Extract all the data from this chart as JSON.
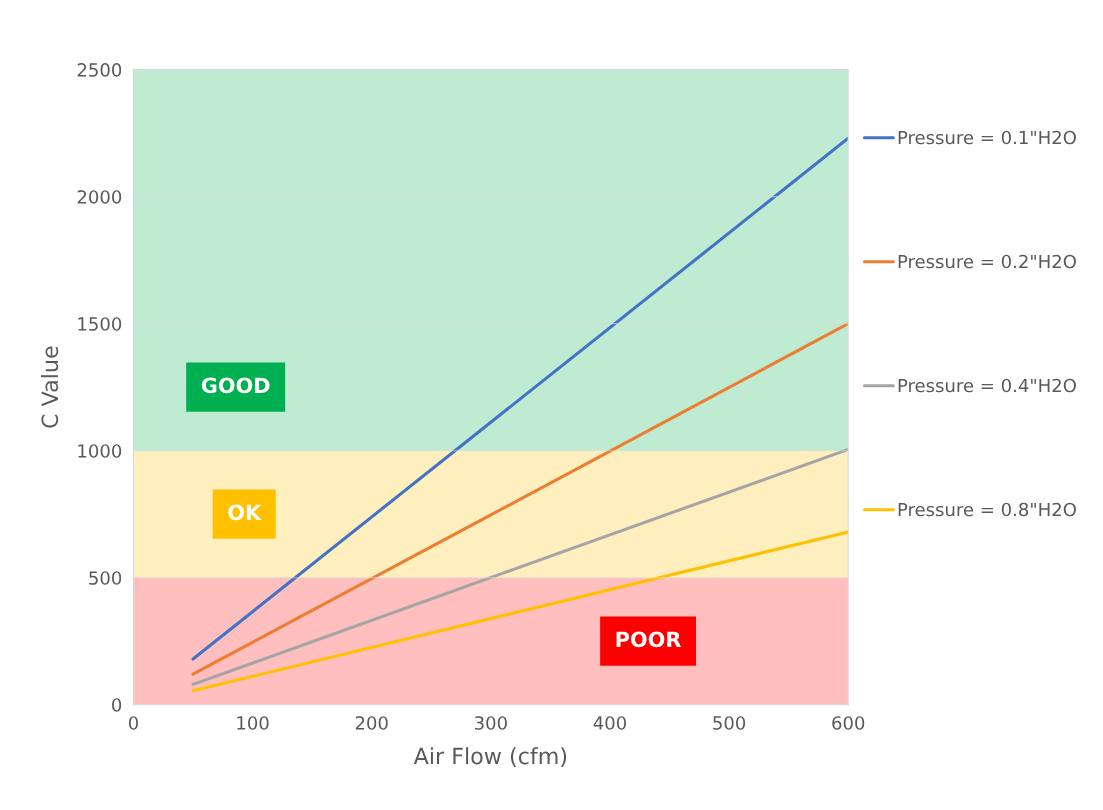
{
  "chart_data": {
    "type": "line",
    "xlabel": "Air Flow (cfm)",
    "ylabel": "C Value",
    "x": [
      50,
      600
    ],
    "series": [
      {
        "name": "Pressure = 0.1\"H2O",
        "color": "#4472c4",
        "values": [
          180,
          2230
        ]
      },
      {
        "name": "Pressure = 0.2\"H2O",
        "color": "#ed7d31",
        "values": [
          120,
          1500
        ]
      },
      {
        "name": "Pressure = 0.4\"H2O",
        "color": "#a5a5a5",
        "values": [
          80,
          1005
        ]
      },
      {
        "name": "Pressure = 0.8\"H2O",
        "color": "#ffc000",
        "values": [
          55,
          680
        ]
      }
    ],
    "xlim": [
      0,
      600
    ],
    "xticks": [
      0,
      100,
      200,
      300,
      400,
      500,
      600
    ],
    "ylim": [
      0,
      2500
    ],
    "yticks": [
      0,
      500,
      1000,
      1500,
      2000,
      2500
    ],
    "bands": [
      {
        "axis": "y",
        "from": 0,
        "to": 500,
        "label": "POOR",
        "color": "#ff0000"
      },
      {
        "axis": "y",
        "from": 500,
        "to": 1000,
        "label": "OK",
        "color": "#ffc000"
      },
      {
        "axis": "y",
        "from": 1000,
        "to": 2500,
        "label": "GOOD",
        "color": "#00b050"
      }
    ],
    "grid": "y",
    "legend": "right",
    "marker": "none",
    "line_style": "solid"
  }
}
